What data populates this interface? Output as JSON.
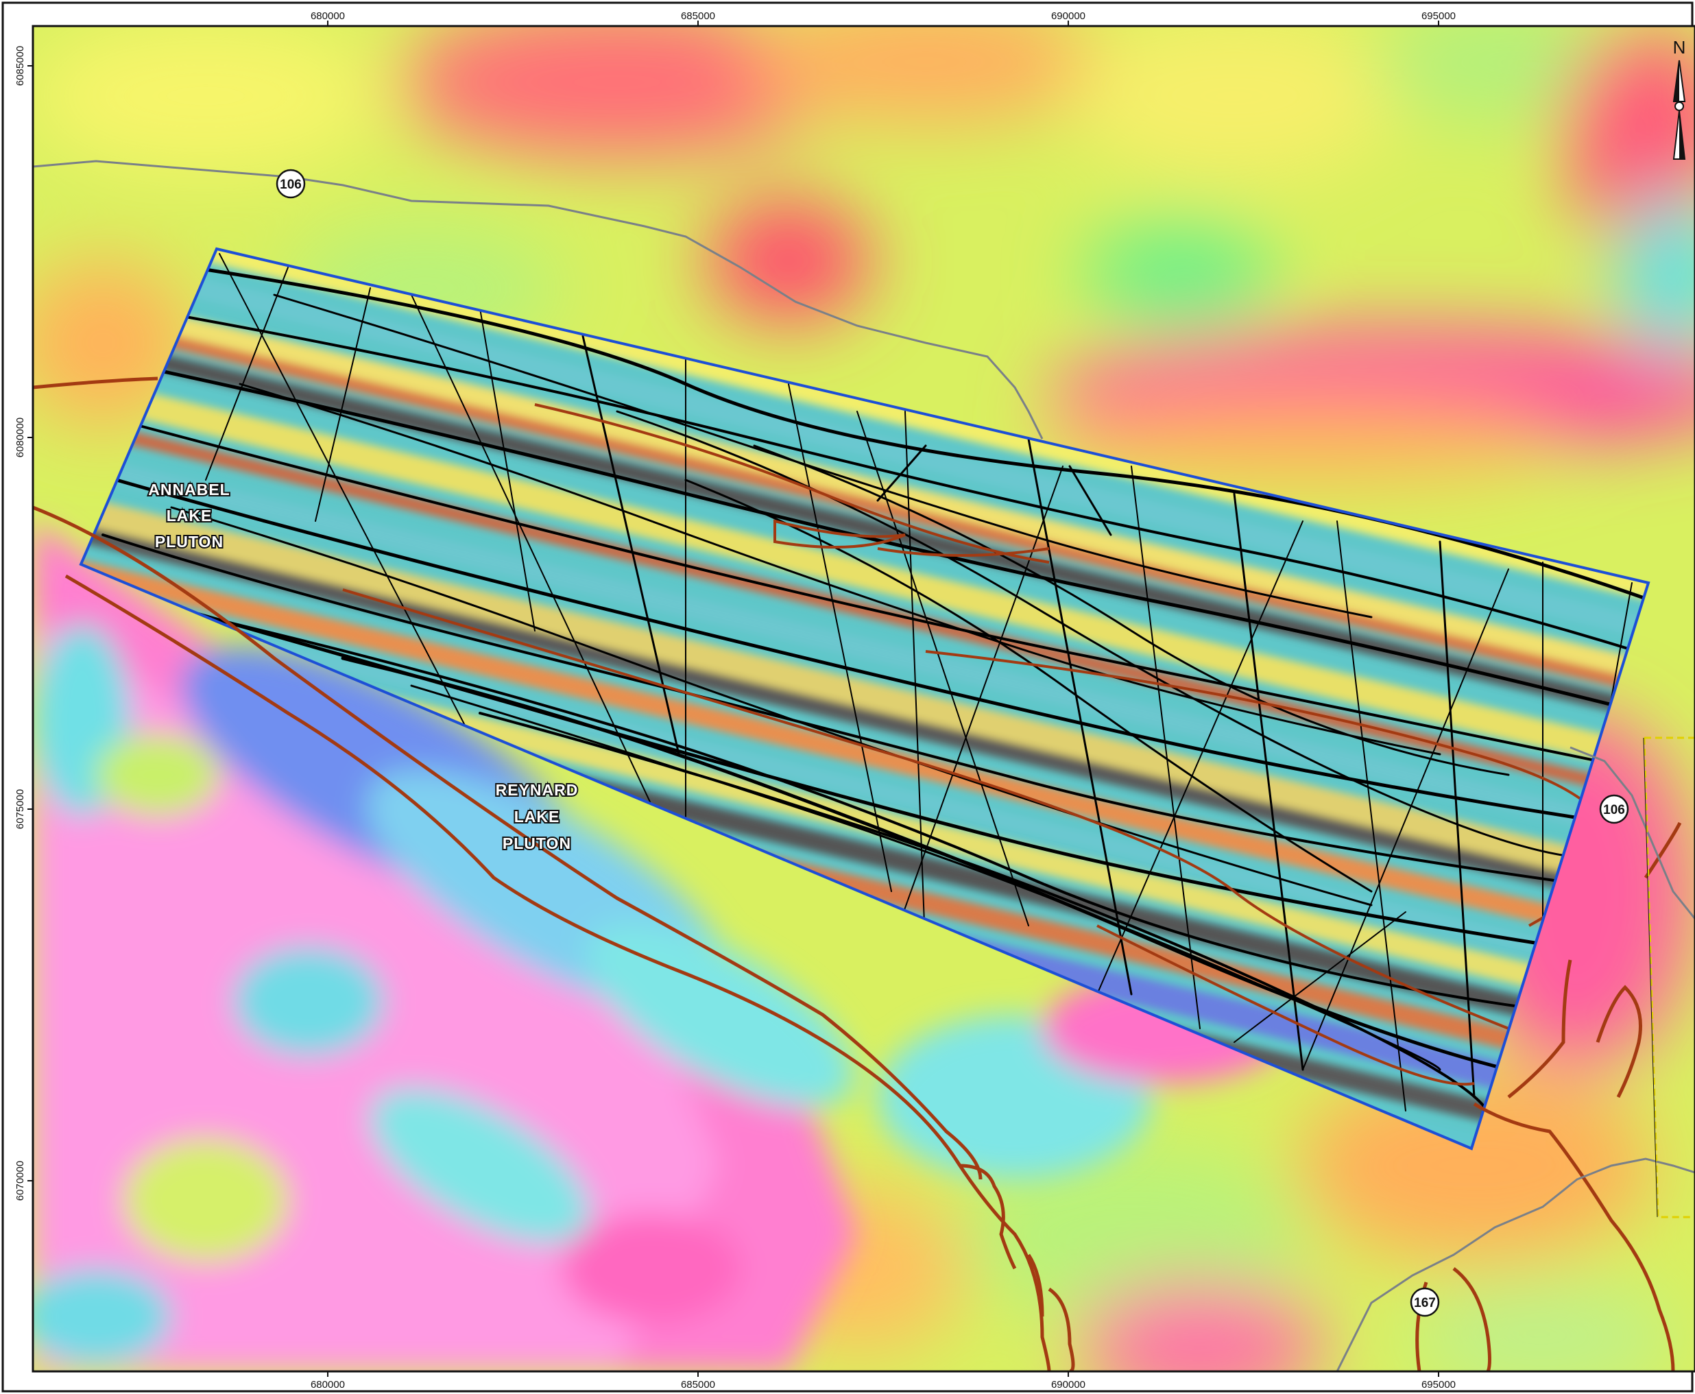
{
  "map": {
    "x_ticks": [
      {
        "label": "680000"
      },
      {
        "label": "685000"
      },
      {
        "label": "690000"
      },
      {
        "label": "695000"
      }
    ],
    "y_ticks": [
      {
        "label": "6085000"
      },
      {
        "label": "6080000"
      },
      {
        "label": "6075000"
      },
      {
        "label": "6070000"
      }
    ],
    "pluton_labels": [
      {
        "lines": [
          "ANNABEL",
          "LAKE",
          "PLUTON"
        ]
      },
      {
        "lines": [
          "REYNARD",
          "LAKE",
          "PLUTON"
        ]
      }
    ],
    "highway_shields": [
      {
        "number": "106"
      },
      {
        "number": "106"
      },
      {
        "number": "167"
      }
    ],
    "north_arrow": {
      "label": "N"
    },
    "colors": {
      "geology_contact": "#a33a12",
      "road": "#7a8088",
      "survey_outline": "#1d4fd6",
      "lineaments": "#000000",
      "claim_boundary": "#e0d000",
      "frame": "#111111"
    }
  }
}
